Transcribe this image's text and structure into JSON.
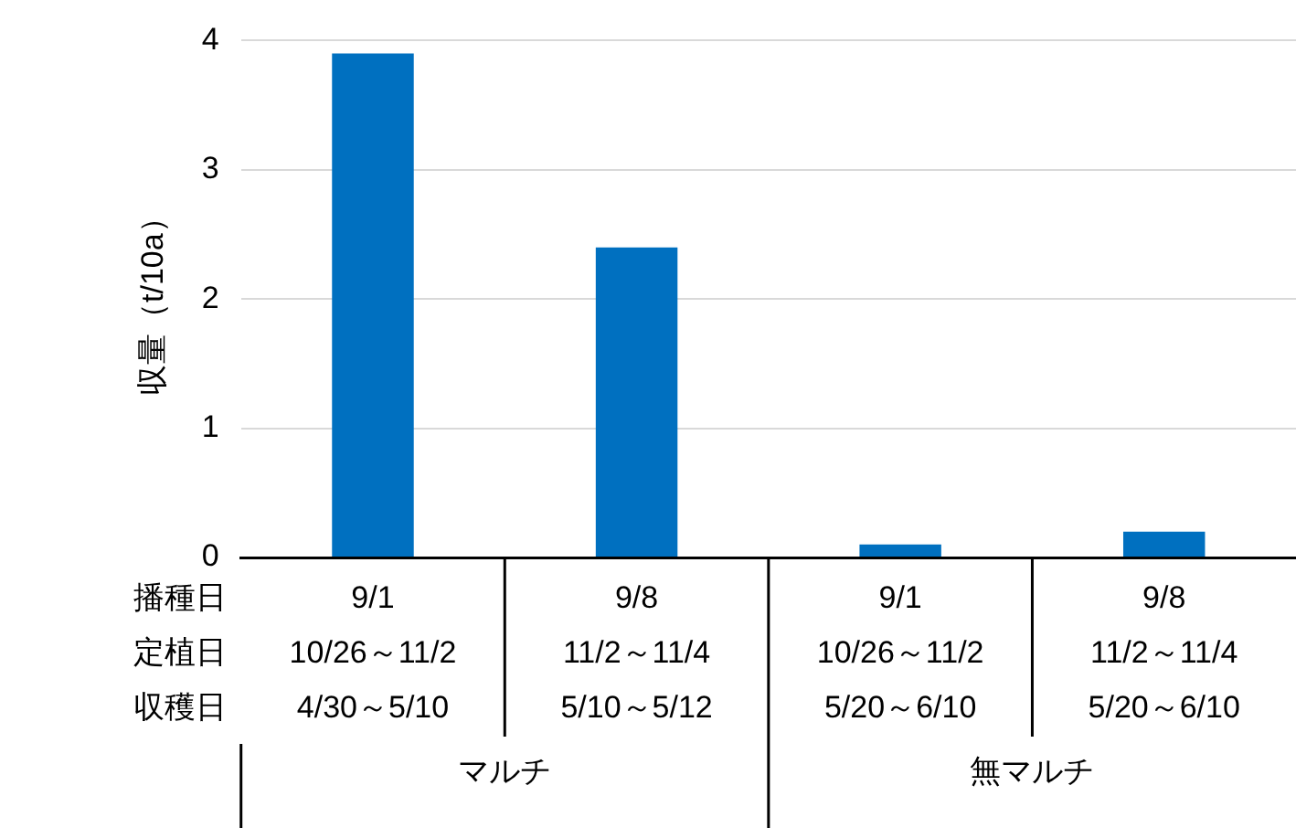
{
  "chart_data": {
    "type": "bar",
    "ylabel": "収量（t/10a）",
    "categories": [
      "9/1\n10/26～11/2\n4/30～5/10",
      "9/8\n11/2～11/4\n5/10～5/12",
      "9/1\n10/26～11/2\n5/20～6/10",
      "9/8\n11/2～11/4\n5/20～6/10"
    ],
    "values": [
      3.9,
      2.4,
      0.1,
      0.2
    ],
    "color": "#0070c0",
    "ylim": [
      0,
      4
    ],
    "yticks": [
      0,
      1,
      2,
      3,
      4
    ],
    "grid": "y",
    "annotations": [
      "播種日",
      "定植日",
      "収穫日",
      "マルチ",
      "無マルチ"
    ]
  }
}
